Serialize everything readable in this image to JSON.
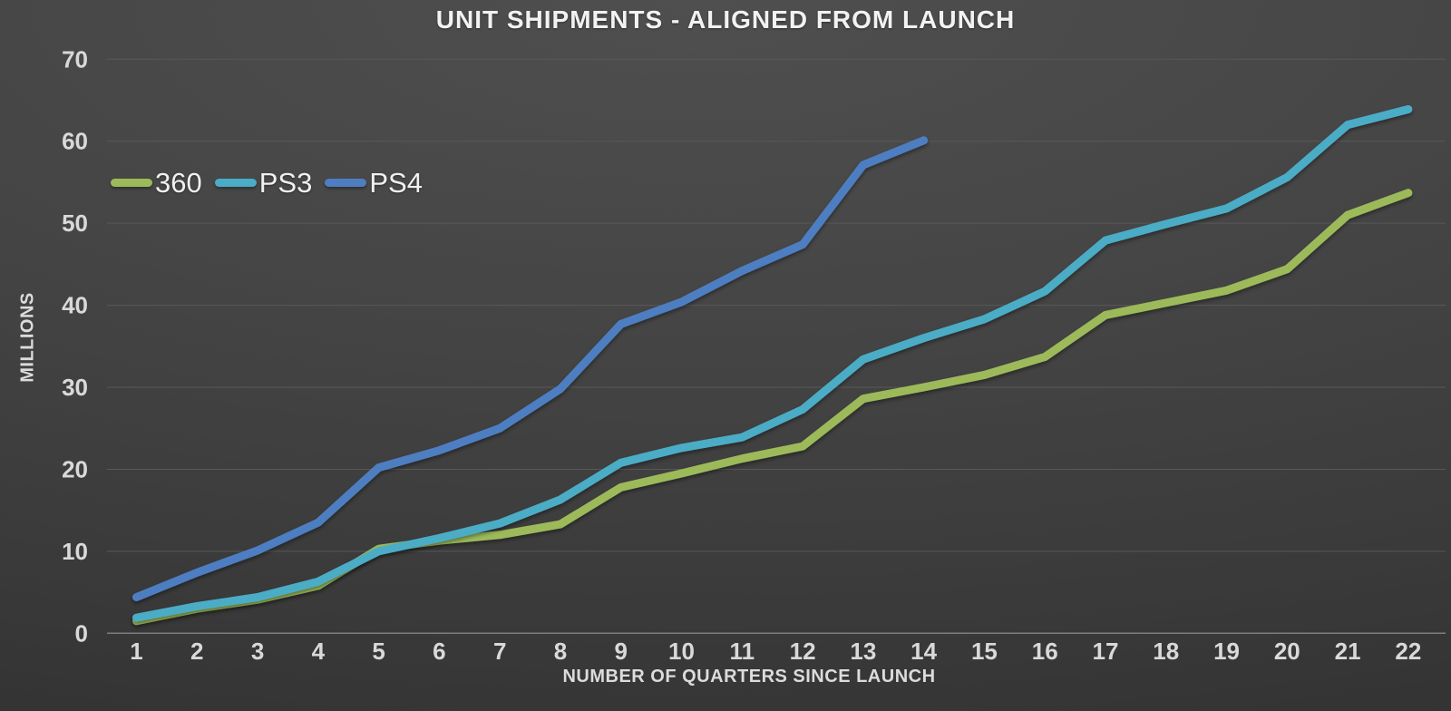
{
  "chart": {
    "title": "UNIT SHIPMENTS - ALIGNED FROM LAUNCH"
  },
  "chart_data": {
    "type": "line",
    "title": "UNIT SHIPMENTS - ALIGNED FROM LAUNCH",
    "xlabel": "NUMBER OF QUARTERS SINCE LAUNCH",
    "ylabel": "MILLIONS",
    "x": [
      1,
      2,
      3,
      4,
      5,
      6,
      7,
      8,
      9,
      10,
      11,
      12,
      13,
      14,
      15,
      16,
      17,
      18,
      19,
      20,
      21,
      22
    ],
    "ylim": [
      0,
      70
    ],
    "ytick_step": 10,
    "yticks": [
      0,
      10,
      20,
      30,
      40,
      50,
      60,
      70
    ],
    "grid": "horizontal",
    "legend_position": "inside-top-left",
    "background": "#3f3f3f",
    "gridline_color": "#585858",
    "axis_line_color": "#7d7d7d",
    "tick_label_color": "#d9d9d9",
    "series": [
      {
        "name": "360",
        "color": "#9CBA5A",
        "values": [
          1.5,
          3.0,
          4.1,
          5.8,
          10.3,
          11.3,
          12.0,
          13.3,
          17.8,
          19.5,
          21.3,
          22.8,
          28.6,
          30.0,
          31.5,
          33.7,
          38.8,
          40.3,
          41.8,
          44.4,
          51.0,
          53.7
        ]
      },
      {
        "name": "PS3",
        "color": "#4BACC6",
        "values": [
          1.9,
          3.3,
          4.4,
          6.3,
          10.0,
          11.6,
          13.4,
          16.3,
          20.8,
          22.6,
          23.9,
          27.3,
          33.4,
          36.0,
          38.3,
          41.7,
          47.9,
          49.9,
          51.8,
          55.6,
          62.0,
          63.9
        ]
      },
      {
        "name": "PS4",
        "color": "#4E7EC1",
        "values": [
          4.4,
          7.4,
          10.1,
          13.5,
          20.2,
          22.3,
          25.0,
          29.8,
          37.7,
          40.4,
          44.2,
          47.4,
          57.1,
          60.1
        ]
      }
    ]
  }
}
